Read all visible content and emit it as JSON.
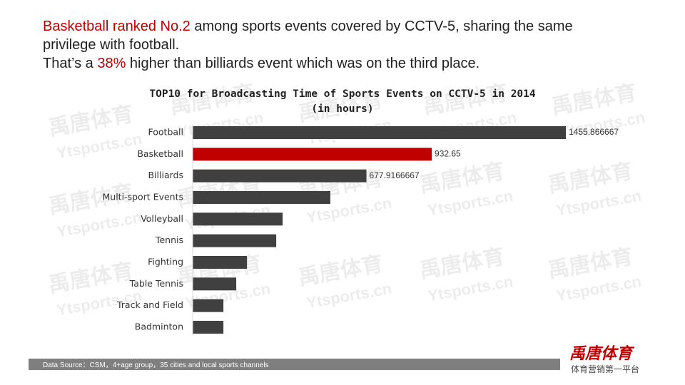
{
  "headline": [
    [
      {
        "text": "Basketball ranked No.2",
        "color": "#c00000"
      },
      {
        "text": " among sports events covered by CCTV-5, sharing the same privilege with football.",
        "color": "#222222"
      }
    ],
    [
      {
        "text": "That’s a ",
        "color": "#222222"
      },
      {
        "text": "38%",
        "color": "#c00000"
      },
      {
        "text": " higher than billiards event which was on the third place.",
        "color": "#222222"
      }
    ]
  ],
  "chart_data": {
    "type": "hbar",
    "title": "TOP10 for Broadcasting Time of Sports Events on CCTV-5 in 2014",
    "subtitle": "(in hours)",
    "categories": [
      "Football",
      "Basketball",
      "Billiards",
      "Multi-sport Events",
      "Volleyball",
      "Tennis",
      "Fighting",
      "Table Tennis",
      "Track and Field",
      "Badminton"
    ],
    "values": [
      1455.866667,
      932.65,
      677.9166667,
      537,
      351,
      326,
      212,
      170,
      120,
      120
    ],
    "value_labels": [
      "1455.866667",
      "932.65",
      "677.9166667",
      null,
      null,
      null,
      null,
      null,
      null,
      null
    ],
    "bar_colors": [
      "#404040",
      "#c00000",
      "#404040",
      "#404040",
      "#404040",
      "#404040",
      "#404040",
      "#404040",
      "#404040",
      "#404040"
    ]
  },
  "footer": {
    "source": "Data Source：CSM，4+age group，35 cities and local sports channels",
    "logo": "禹唐体育",
    "slogan": "体育营销第一平台"
  },
  "watermark": {
    "brand": "禹唐体育",
    "site": "Ytsports.cn"
  }
}
